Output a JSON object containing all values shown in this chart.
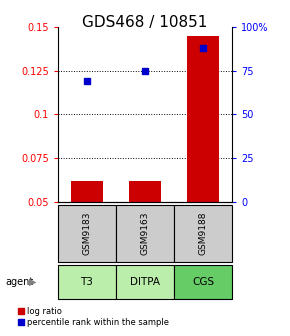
{
  "title": "GDS468 / 10851",
  "samples": [
    "GSM9183",
    "GSM9163",
    "GSM9188"
  ],
  "agents": [
    "T3",
    "DITPA",
    "CGS"
  ],
  "log_ratio": [
    0.062,
    0.062,
    0.145
  ],
  "percentile_rank": [
    0.69,
    0.75,
    0.88
  ],
  "ylim_left": [
    0.05,
    0.15
  ],
  "ylim_right": [
    0.0,
    1.0
  ],
  "yticks_left": [
    0.05,
    0.075,
    0.1,
    0.125,
    0.15
  ],
  "ytick_labels_left": [
    "0.05",
    "0.075",
    "0.1",
    "0.125",
    "0.15"
  ],
  "yticks_right": [
    0.0,
    0.25,
    0.5,
    0.75,
    1.0
  ],
  "ytick_labels_right": [
    "0",
    "25",
    "50",
    "75",
    "100%"
  ],
  "bar_color": "#cc0000",
  "square_color": "#0000cc",
  "sample_box_color": "#cccccc",
  "agent_box_color_light": "#bbeeaa",
  "agent_box_color_dark": "#66cc66",
  "agent_colors": [
    "#bbeeaa",
    "#bbeeaa",
    "#66cc66"
  ],
  "title_fontsize": 11,
  "bar_width": 0.55,
  "legend_bar_label": "log ratio",
  "legend_sq_label": "percentile rank within the sample"
}
